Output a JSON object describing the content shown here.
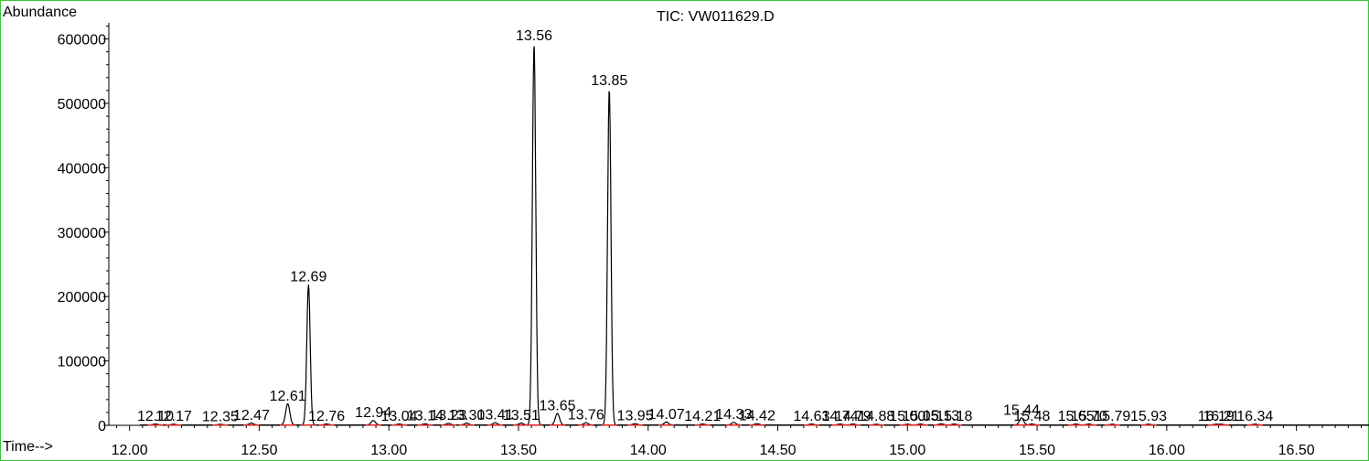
{
  "chart_data": {
    "type": "line",
    "title": "TIC: VW011629.D",
    "ylabel": "Abundance",
    "xlabel": "Time-->",
    "xlim": [
      11.92,
      16.78
    ],
    "ylim": [
      0,
      625000
    ],
    "x_ticks": [
      12.0,
      12.5,
      13.0,
      13.5,
      14.0,
      14.5,
      15.0,
      15.5,
      16.0,
      16.5
    ],
    "x_tick_labels": [
      "12.00",
      "12.50",
      "13.00",
      "13.50",
      "14.00",
      "14.50",
      "15.00",
      "15.50",
      "16.00",
      "16.50"
    ],
    "y_ticks": [
      0,
      100000,
      200000,
      300000,
      400000,
      500000,
      600000
    ],
    "y_tick_labels": [
      "0",
      "100000",
      "200000",
      "300000",
      "400000",
      "500000",
      "600000"
    ],
    "peaks": [
      {
        "rt": 12.1,
        "height": 1500,
        "label": "12.10"
      },
      {
        "rt": 12.17,
        "height": 1200,
        "label": "12.17"
      },
      {
        "rt": 12.35,
        "height": 1000,
        "label": "12.35"
      },
      {
        "rt": 12.47,
        "height": 3000,
        "label": "12.47"
      },
      {
        "rt": 12.61,
        "height": 33000,
        "label": "12.61"
      },
      {
        "rt": 12.69,
        "height": 218000,
        "label": "12.69"
      },
      {
        "rt": 12.76,
        "height": 1500,
        "label": "12.76"
      },
      {
        "rt": 12.94,
        "height": 7000,
        "label": "12.94"
      },
      {
        "rt": 13.04,
        "height": 1500,
        "label": "13.04"
      },
      {
        "rt": 13.14,
        "height": 1800,
        "label": "13.14"
      },
      {
        "rt": 13.23,
        "height": 2500,
        "label": "13.23"
      },
      {
        "rt": 13.3,
        "height": 3000,
        "label": "13.30"
      },
      {
        "rt": 13.41,
        "height": 3500,
        "label": "13.41"
      },
      {
        "rt": 13.51,
        "height": 3000,
        "label": "13.51"
      },
      {
        "rt": 13.56,
        "height": 592000,
        "label": "13.56"
      },
      {
        "rt": 13.65,
        "height": 18000,
        "label": "13.65"
      },
      {
        "rt": 13.76,
        "height": 3500,
        "label": "13.76"
      },
      {
        "rt": 13.85,
        "height": 523000,
        "label": "13.85"
      },
      {
        "rt": 13.95,
        "height": 2000,
        "label": "13.95"
      },
      {
        "rt": 14.07,
        "height": 4500,
        "label": "14.07"
      },
      {
        "rt": 14.21,
        "height": 1500,
        "label": "14.21"
      },
      {
        "rt": 14.33,
        "height": 4000,
        "label": "14.33"
      },
      {
        "rt": 14.42,
        "height": 2000,
        "label": "14.42"
      },
      {
        "rt": 14.63,
        "height": 1500,
        "label": "14.63"
      },
      {
        "rt": 14.74,
        "height": 1500,
        "label": "14.74"
      },
      {
        "rt": 14.79,
        "height": 1500,
        "label": "14.79"
      },
      {
        "rt": 14.88,
        "height": 1200,
        "label": "14.88"
      },
      {
        "rt": 15.0,
        "height": 1200,
        "label": "15.00"
      },
      {
        "rt": 15.05,
        "height": 1500,
        "label": "15.05"
      },
      {
        "rt": 15.13,
        "height": 2000,
        "label": "15.13"
      },
      {
        "rt": 15.18,
        "height": 1500,
        "label": "15.18"
      },
      {
        "rt": 15.44,
        "height": 11000,
        "label": "15.44"
      },
      {
        "rt": 15.48,
        "height": 1500,
        "label": "15.48"
      },
      {
        "rt": 15.65,
        "height": 1500,
        "label": "15.65"
      },
      {
        "rt": 15.7,
        "height": 1500,
        "label": "15.70"
      },
      {
        "rt": 15.79,
        "height": 1200,
        "label": "15.79"
      },
      {
        "rt": 15.93,
        "height": 1200,
        "label": "15.93"
      },
      {
        "rt": 16.19,
        "height": 1200,
        "label": "16.19"
      },
      {
        "rt": 16.21,
        "height": 1200,
        "label": "16.21"
      },
      {
        "rt": 16.34,
        "height": 1200,
        "label": "16.34"
      }
    ]
  }
}
